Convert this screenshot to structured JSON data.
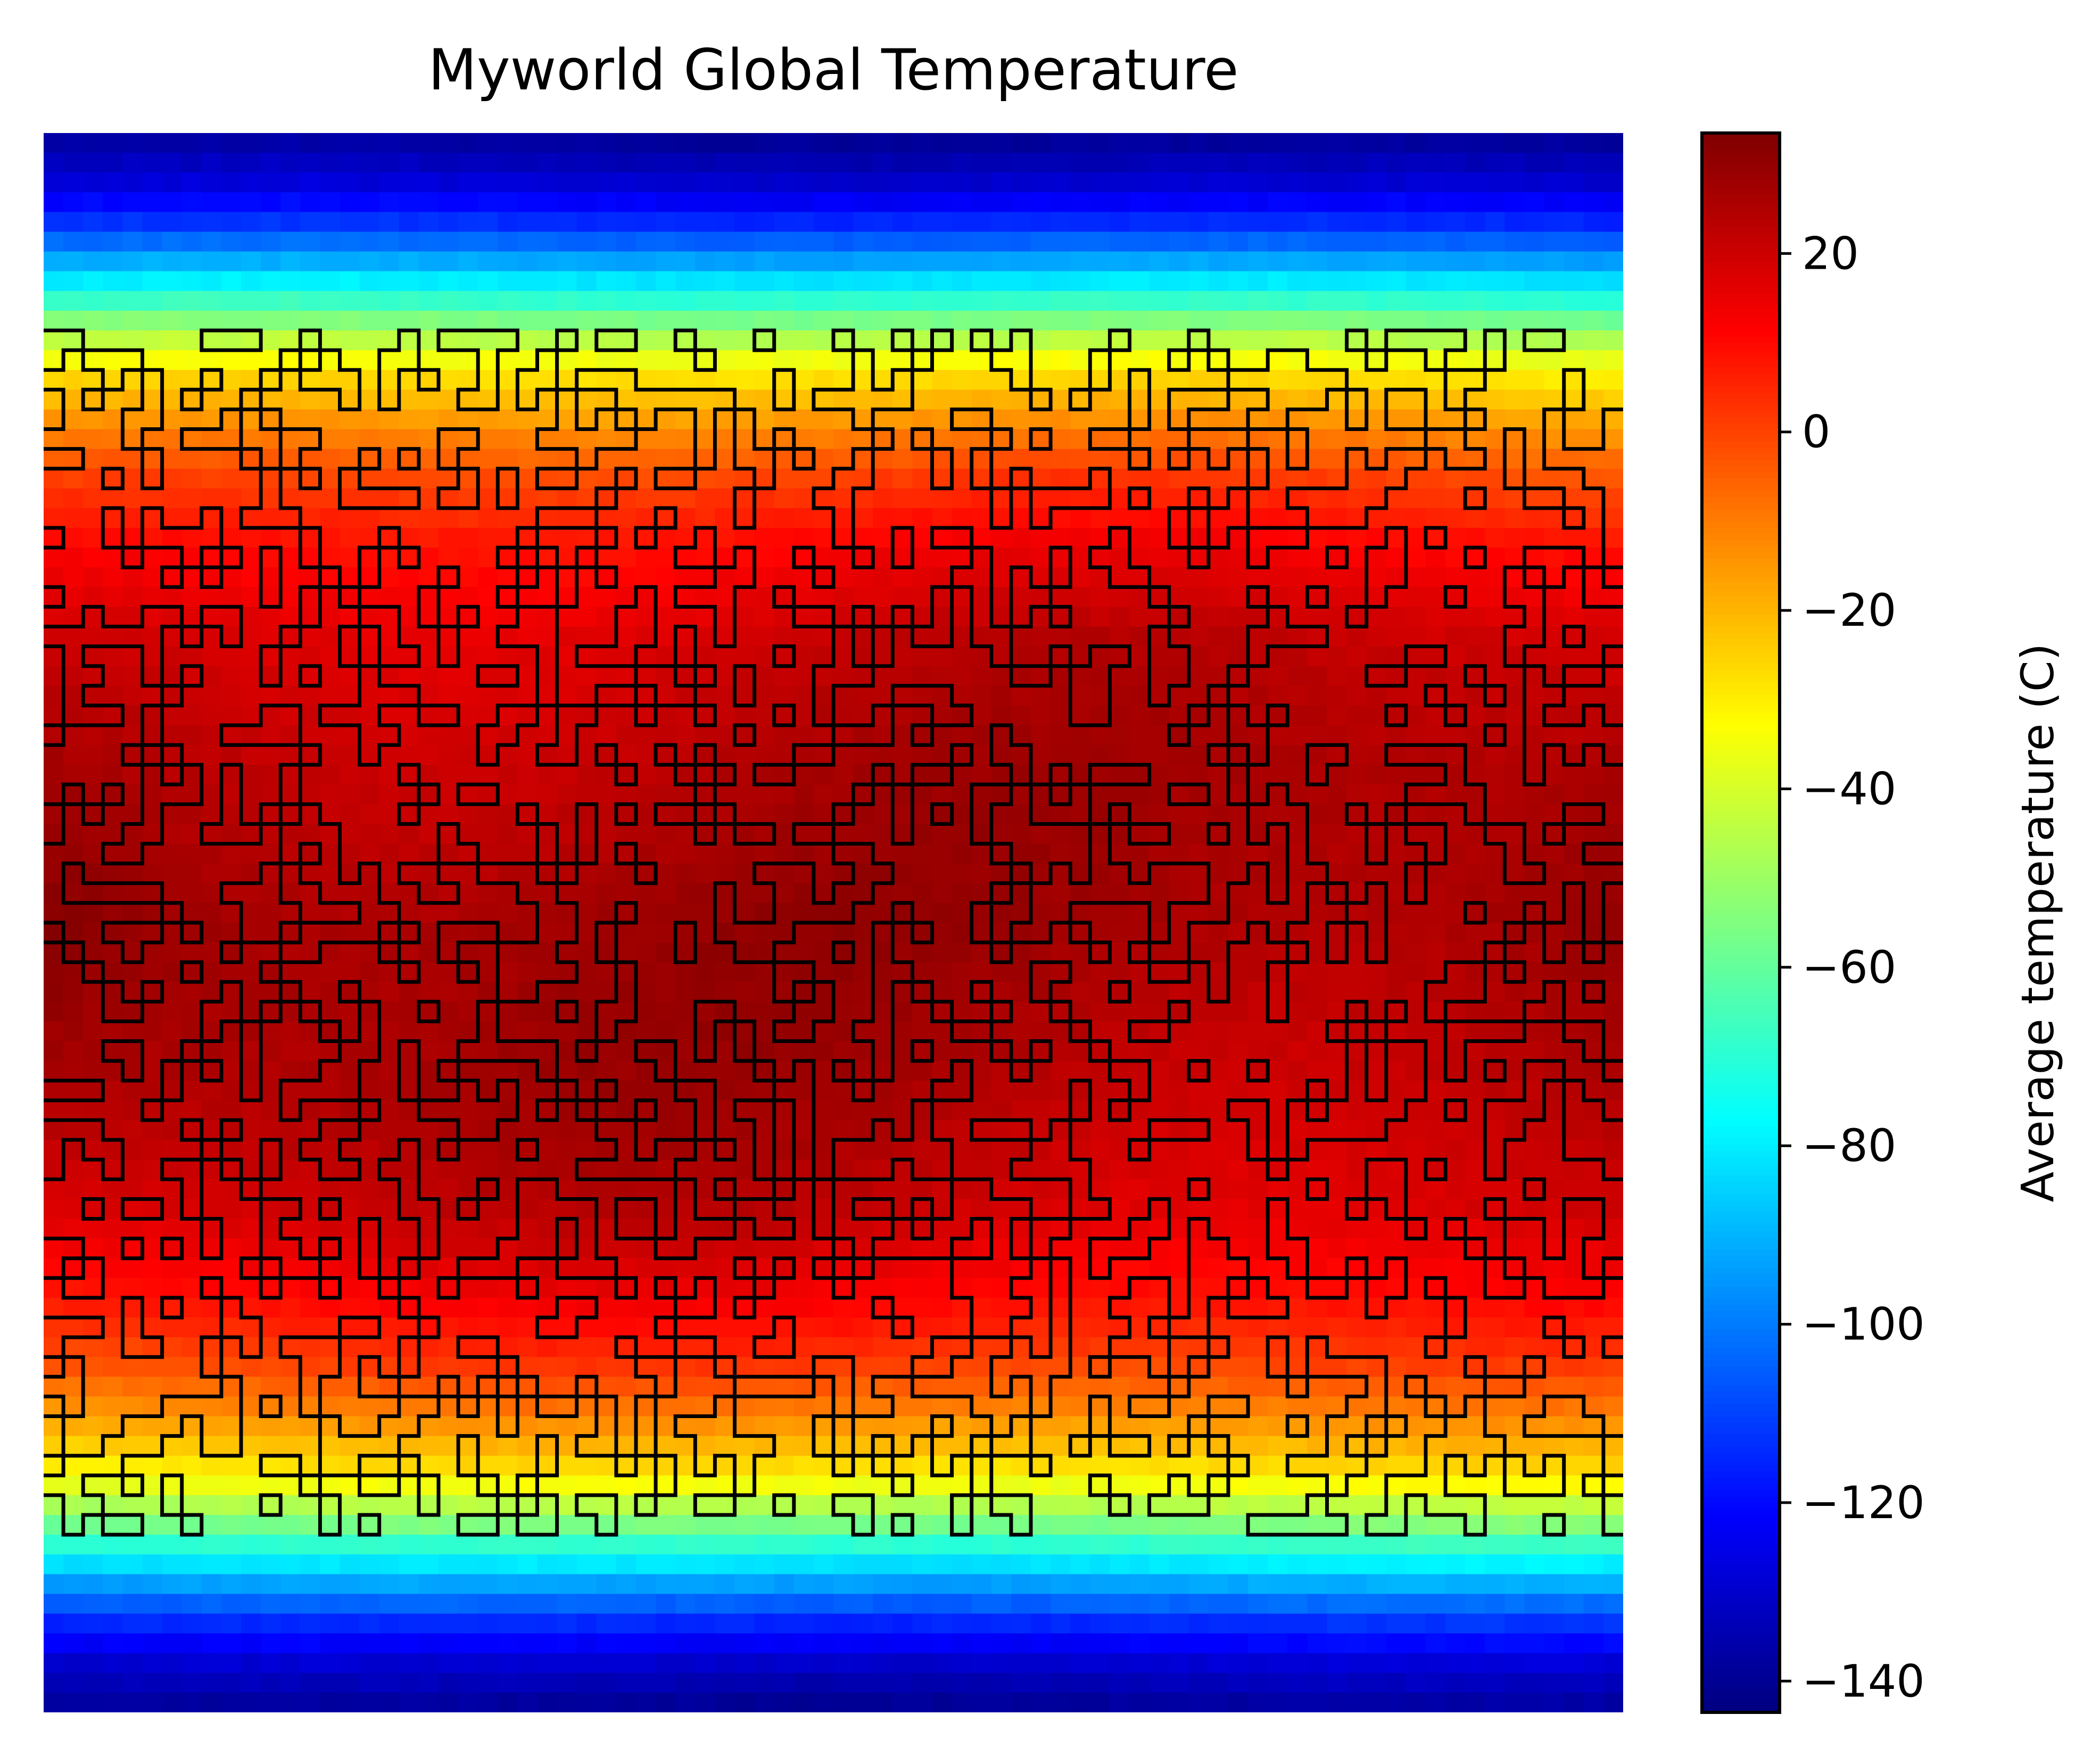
{
  "chart_data": {
    "type": "heatmap",
    "title": "Myworld Global Temperature",
    "xlabel": "",
    "ylabel": "",
    "colormap": "jet",
    "x_axis_visible": false,
    "y_axis_visible": false,
    "colorbar": {
      "label": "Average temperature (C)",
      "range": [
        -143.5,
        33.5
      ],
      "ticks": [
        20,
        0,
        -20,
        -40,
        -60,
        -80,
        -100,
        -120,
        -140
      ],
      "tick_labels": [
        "20",
        "0",
        "−20",
        "−40",
        "−60",
        "−80",
        "−100",
        "−120",
        "−140"
      ]
    },
    "temperature_profile_by_latitude": {
      "latitude_fraction_from_top": [
        0.0,
        0.03,
        0.06,
        0.09,
        0.12,
        0.15,
        0.19,
        0.22,
        0.26,
        0.32,
        0.4,
        0.5,
        0.6,
        0.68,
        0.74,
        0.78,
        0.81,
        0.85,
        0.88,
        0.91,
        0.94,
        0.97,
        1.0
      ],
      "average_temperature_c": [
        -140,
        -130,
        -112,
        -85,
        -55,
        -30,
        -12,
        0,
        10,
        20,
        26,
        30,
        26,
        20,
        10,
        0,
        -12,
        -30,
        -55,
        -85,
        -112,
        -130,
        -140
      ]
    },
    "contour_overlay": {
      "color": "#000000",
      "description": "coastlines"
    }
  }
}
